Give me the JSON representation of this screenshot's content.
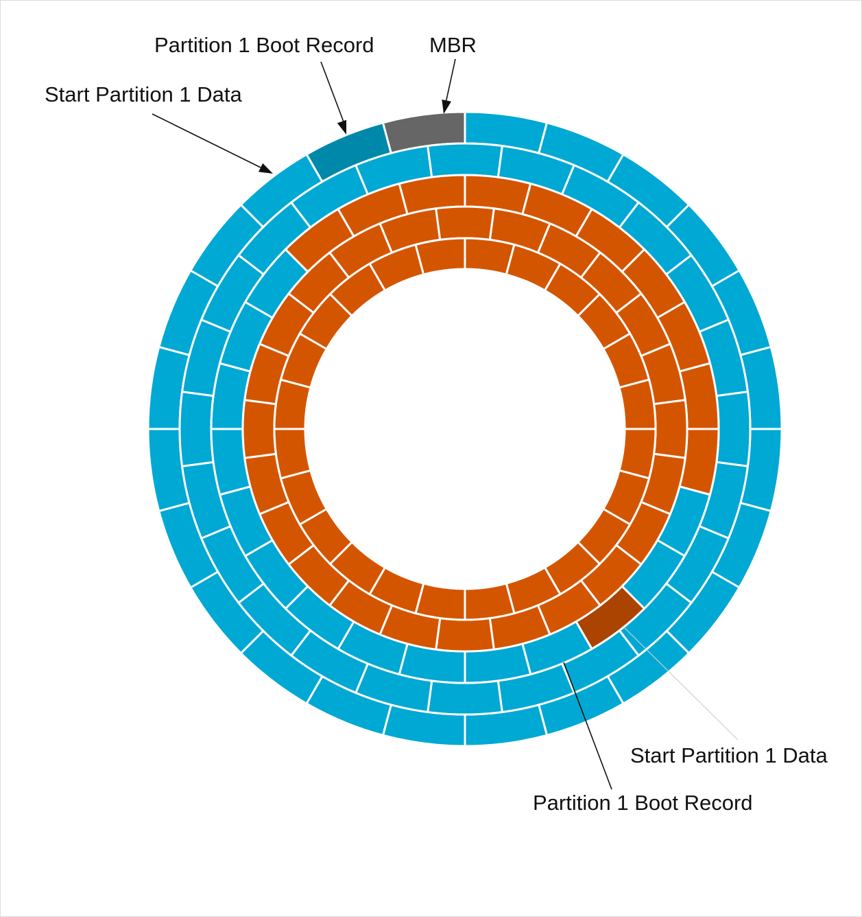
{
  "labels": {
    "top_boot_record": "Partition 1 Boot Record",
    "top_mbr": "MBR",
    "top_start_data": "Start Partition 1 Data",
    "bottom_start_data": "Start Partition 1 Data",
    "bottom_boot_record": "Partition 1 Boot Record"
  },
  "colors": {
    "partition_a": "#00a8d4",
    "partition_b": "#d45500",
    "mbr": "#666666",
    "boot_record_a": "#0088aa",
    "boot_record_b": "#aa4400",
    "separator": "#ffffff"
  },
  "disk": {
    "tracks": 5,
    "sectors_per_track": 24,
    "legend": {
      "partition_a": "outer tracks (blue)",
      "partition_b": "inner tracks (orange)"
    }
  }
}
